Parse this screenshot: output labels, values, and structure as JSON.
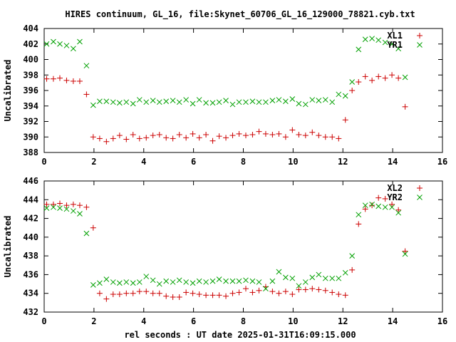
{
  "title": "HIRES continuum, GL_16, file:Skynet_60706_GL_16_129000_78821.cyb.txt",
  "xlabel": "rel seconds : UT date 2025-01-31T16:09:15.000",
  "colors": {
    "XL": "#cc0000",
    "YR": "#00a000"
  },
  "chart_data": [
    {
      "type": "scatter",
      "ylabel": "Uncalibrated",
      "xlim": [
        0,
        16
      ],
      "ylim": [
        388,
        404
      ],
      "xticks": [
        "0",
        "2",
        "4",
        "6",
        "8",
        "10",
        "12",
        "14",
        "16"
      ],
      "yticks": [
        "388",
        "390",
        "392",
        "394",
        "396",
        "398",
        "400",
        "402",
        "404"
      ],
      "legend_position": "top-right",
      "series": [
        {
          "name": "XL1",
          "marker": "plus",
          "x": [
            0.1,
            0.37,
            0.63,
            0.9,
            1.17,
            1.43,
            1.7,
            1.97,
            2.23,
            2.5,
            2.77,
            3.03,
            3.3,
            3.57,
            3.83,
            4.1,
            4.37,
            4.63,
            4.9,
            5.17,
            5.43,
            5.7,
            5.97,
            6.23,
            6.5,
            6.77,
            7.03,
            7.3,
            7.57,
            7.83,
            8.1,
            8.37,
            8.63,
            8.9,
            9.17,
            9.43,
            9.7,
            9.97,
            10.23,
            10.5,
            10.77,
            11.03,
            11.3,
            11.57,
            11.83,
            12.1,
            12.37,
            12.63,
            12.9,
            13.17,
            13.43,
            13.7,
            13.97,
            14.23,
            14.5
          ],
          "y": [
            397.5,
            397.5,
            397.6,
            397.3,
            397.2,
            397.2,
            395.5,
            390.0,
            389.8,
            389.4,
            389.8,
            390.2,
            389.7,
            390.3,
            389.8,
            389.9,
            390.2,
            390.3,
            389.9,
            389.8,
            390.3,
            389.9,
            390.4,
            389.9,
            390.3,
            389.5,
            390.1,
            389.9,
            390.2,
            390.4,
            390.2,
            390.3,
            390.7,
            390.4,
            390.3,
            390.4,
            390.0,
            390.9,
            390.3,
            390.2,
            390.6,
            390.2,
            390.0,
            390.0,
            389.8,
            392.2,
            396.0,
            397.1,
            397.8,
            397.3,
            397.8,
            397.6,
            398.0,
            397.6,
            393.9
          ]
        },
        {
          "name": "YR1",
          "marker": "cross",
          "x": [
            0.1,
            0.37,
            0.63,
            0.9,
            1.17,
            1.43,
            1.7,
            1.97,
            2.23,
            2.5,
            2.77,
            3.03,
            3.3,
            3.57,
            3.83,
            4.1,
            4.37,
            4.63,
            4.9,
            5.17,
            5.43,
            5.7,
            5.97,
            6.23,
            6.5,
            6.77,
            7.03,
            7.3,
            7.57,
            7.83,
            8.1,
            8.37,
            8.63,
            8.9,
            9.17,
            9.43,
            9.7,
            9.97,
            10.23,
            10.5,
            10.77,
            11.03,
            11.3,
            11.57,
            11.83,
            12.1,
            12.37,
            12.63,
            12.9,
            13.17,
            13.43,
            13.7,
            13.97,
            14.23,
            14.5
          ],
          "y": [
            402.0,
            402.3,
            402.0,
            401.8,
            401.4,
            402.3,
            399.2,
            394.1,
            394.6,
            394.6,
            394.5,
            394.4,
            394.5,
            394.3,
            394.8,
            394.5,
            394.7,
            394.5,
            394.6,
            394.7,
            394.5,
            394.8,
            394.3,
            394.8,
            394.4,
            394.4,
            394.5,
            394.7,
            394.2,
            394.5,
            394.5,
            394.6,
            394.5,
            394.5,
            394.7,
            394.8,
            394.6,
            394.9,
            394.3,
            394.2,
            394.8,
            394.7,
            394.8,
            394.5,
            395.5,
            395.3,
            397.1,
            401.3,
            402.6,
            402.7,
            402.5,
            402.2,
            402.0,
            401.4,
            397.7
          ]
        }
      ]
    },
    {
      "type": "scatter",
      "ylabel": "Uncalibrated",
      "xlim": [
        0,
        16
      ],
      "ylim": [
        432,
        446
      ],
      "xticks": [
        "0",
        "2",
        "4",
        "6",
        "8",
        "10",
        "12",
        "14",
        "16"
      ],
      "yticks": [
        "432",
        "434",
        "436",
        "438",
        "440",
        "442",
        "444",
        "446"
      ],
      "legend_position": "top-right",
      "series": [
        {
          "name": "XL2",
          "marker": "plus",
          "x": [
            0.1,
            0.37,
            0.63,
            0.9,
            1.17,
            1.43,
            1.7,
            1.97,
            2.23,
            2.5,
            2.77,
            3.03,
            3.3,
            3.57,
            3.83,
            4.1,
            4.37,
            4.63,
            4.9,
            5.17,
            5.43,
            5.7,
            5.97,
            6.23,
            6.5,
            6.77,
            7.03,
            7.3,
            7.57,
            7.83,
            8.1,
            8.37,
            8.63,
            8.9,
            9.17,
            9.43,
            9.7,
            9.97,
            10.23,
            10.5,
            10.77,
            11.03,
            11.3,
            11.57,
            11.83,
            12.1,
            12.37,
            12.63,
            12.9,
            13.17,
            13.43,
            13.7,
            13.97,
            14.23,
            14.5
          ],
          "y": [
            443.5,
            443.5,
            443.6,
            443.4,
            443.5,
            443.4,
            443.2,
            441.0,
            434.0,
            433.4,
            433.9,
            433.9,
            434.0,
            434.0,
            434.2,
            434.2,
            434.0,
            434.0,
            433.7,
            433.6,
            433.6,
            434.1,
            434.0,
            433.9,
            433.8,
            433.8,
            433.8,
            433.7,
            434.0,
            434.1,
            434.5,
            434.1,
            434.3,
            434.7,
            434.2,
            434.0,
            434.2,
            433.9,
            434.4,
            434.4,
            434.5,
            434.4,
            434.3,
            434.1,
            433.9,
            433.8,
            436.5,
            441.4,
            443.0,
            443.4,
            444.2,
            444.1,
            443.5,
            442.9,
            438.5
          ]
        },
        {
          "name": "YR2",
          "marker": "cross",
          "x": [
            0.1,
            0.37,
            0.63,
            0.9,
            1.17,
            1.43,
            1.7,
            1.97,
            2.23,
            2.5,
            2.77,
            3.03,
            3.3,
            3.57,
            3.83,
            4.1,
            4.37,
            4.63,
            4.9,
            5.17,
            5.43,
            5.7,
            5.97,
            6.23,
            6.5,
            6.77,
            7.03,
            7.3,
            7.57,
            7.83,
            8.1,
            8.37,
            8.63,
            8.9,
            9.17,
            9.43,
            9.7,
            9.97,
            10.23,
            10.5,
            10.77,
            11.03,
            11.3,
            11.57,
            11.83,
            12.1,
            12.37,
            12.63,
            12.9,
            13.17,
            13.43,
            13.7,
            13.97,
            14.23,
            14.5
          ],
          "y": [
            443.1,
            443.2,
            443.1,
            443.0,
            442.8,
            442.5,
            440.4,
            434.9,
            435.1,
            435.5,
            435.2,
            435.1,
            435.2,
            435.1,
            435.2,
            435.8,
            435.4,
            435.0,
            435.3,
            435.2,
            435.4,
            435.2,
            435.1,
            435.3,
            435.2,
            435.3,
            435.5,
            435.3,
            435.3,
            435.3,
            435.4,
            435.3,
            435.2,
            434.5,
            435.3,
            436.3,
            435.7,
            435.6,
            434.8,
            435.2,
            435.7,
            436.0,
            435.6,
            435.6,
            435.6,
            436.2,
            438.0,
            442.4,
            443.4,
            443.5,
            443.3,
            443.2,
            443.2,
            442.6,
            438.2
          ]
        }
      ]
    }
  ]
}
